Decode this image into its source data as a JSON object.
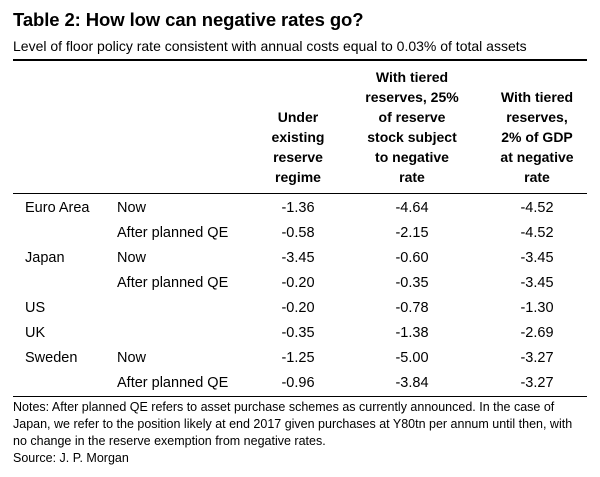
{
  "title": "Table 2: How low can negative rates go?",
  "subtitle": "Level of floor policy rate consistent with annual costs equal to 0.03% of total assets",
  "columns": [
    {
      "lines": [
        "Under",
        "existing",
        "reserve",
        "regime"
      ]
    },
    {
      "lines": [
        "With tiered",
        "reserves, 25%",
        "of reserve",
        "stock subject",
        "to negative",
        "rate"
      ]
    },
    {
      "lines": [
        "With tiered",
        "reserves,",
        "2% of GDP",
        "at negative",
        "rate"
      ]
    }
  ],
  "rows": [
    {
      "country": "Euro Area",
      "period": "Now",
      "values": [
        "-1.36",
        "-4.64",
        "-4.52"
      ]
    },
    {
      "country": "",
      "period": "After planned QE",
      "values": [
        "-0.58",
        "-2.15",
        "-4.52"
      ]
    },
    {
      "country": "Japan",
      "period": "Now",
      "values": [
        "-3.45",
        "-0.60",
        "-3.45"
      ]
    },
    {
      "country": "",
      "period": "After planned QE",
      "values": [
        "-0.20",
        "-0.35",
        "-3.45"
      ]
    },
    {
      "country": "US",
      "period": "",
      "values": [
        "-0.20",
        "-0.78",
        "-1.30"
      ]
    },
    {
      "country": "UK",
      "period": "",
      "values": [
        "-0.35",
        "-1.38",
        "-2.69"
      ]
    },
    {
      "country": "Sweden",
      "period": "Now",
      "values": [
        "-1.25",
        "-5.00",
        "-3.27"
      ]
    },
    {
      "country": "",
      "period": "After planned QE",
      "values": [
        "-0.96",
        "-3.84",
        "-3.27"
      ]
    }
  ],
  "notes": "Notes: After planned QE refers to asset purchase schemes as currently announced. In the case of Japan, we refer to the position likely at end 2017 given purchases at Y80tn per annum until then, with no change in the reserve exemption from negative rates.",
  "source": "Source: J. P. Morgan"
}
